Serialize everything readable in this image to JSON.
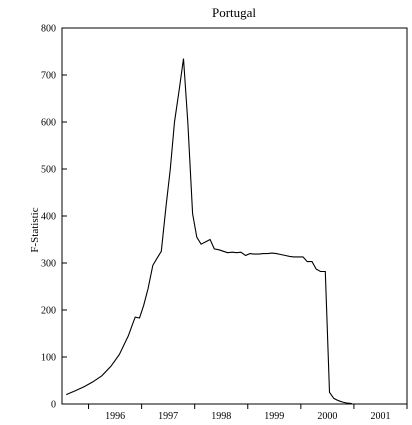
{
  "chart_data": {
    "type": "line",
    "title": "Portugal",
    "xlabel": "",
    "ylabel": "F-Statistic",
    "ylim": [
      0,
      800
    ],
    "xlim": [
      1995.5,
      2002.0
    ],
    "grid": false,
    "y_ticks": [
      "0",
      "100",
      "200",
      "300",
      "400",
      "500",
      "600",
      "700",
      "800"
    ],
    "x_tick_labels": [
      "1996",
      "1997",
      "1998",
      "1999",
      "2000",
      "2001"
    ],
    "series": [
      {
        "values": [
          [
            1995.58,
            20
          ],
          [
            1995.75,
            28
          ],
          [
            1995.92,
            37
          ],
          [
            1996.08,
            47
          ],
          [
            1996.25,
            60
          ],
          [
            1996.42,
            80
          ],
          [
            1996.58,
            105
          ],
          [
            1996.75,
            145
          ],
          [
            1996.83,
            170
          ],
          [
            1996.88,
            185
          ],
          [
            1996.96,
            183
          ],
          [
            1997.04,
            210
          ],
          [
            1997.12,
            245
          ],
          [
            1997.21,
            295
          ],
          [
            1997.29,
            310
          ],
          [
            1997.37,
            325
          ],
          [
            1997.46,
            420
          ],
          [
            1997.54,
            500
          ],
          [
            1997.62,
            600
          ],
          [
            1997.71,
            670
          ],
          [
            1997.79,
            735
          ],
          [
            1997.87,
            600
          ],
          [
            1997.96,
            405
          ],
          [
            1998.04,
            355
          ],
          [
            1998.12,
            340
          ],
          [
            1998.21,
            345
          ],
          [
            1998.29,
            350
          ],
          [
            1998.37,
            330
          ],
          [
            1998.46,
            328
          ],
          [
            1998.54,
            325
          ],
          [
            1998.62,
            322
          ],
          [
            1998.71,
            323
          ],
          [
            1998.79,
            322
          ],
          [
            1998.87,
            323
          ],
          [
            1998.96,
            316
          ],
          [
            1999.04,
            320
          ],
          [
            1999.12,
            319
          ],
          [
            1999.21,
            319
          ],
          [
            1999.29,
            320
          ],
          [
            1999.37,
            320
          ],
          [
            1999.46,
            321
          ],
          [
            1999.54,
            320
          ],
          [
            1999.62,
            318
          ],
          [
            1999.71,
            316
          ],
          [
            1999.79,
            314
          ],
          [
            1999.87,
            313
          ],
          [
            1999.96,
            313
          ],
          [
            2000.04,
            313
          ],
          [
            2000.12,
            303
          ],
          [
            2000.21,
            303
          ],
          [
            2000.29,
            287
          ],
          [
            2000.37,
            282
          ],
          [
            2000.46,
            282
          ],
          [
            2000.54,
            25
          ],
          [
            2000.62,
            12
          ],
          [
            2000.71,
            7
          ],
          [
            2000.79,
            4
          ],
          [
            2000.87,
            2
          ],
          [
            2000.96,
            1
          ]
        ]
      }
    ]
  }
}
